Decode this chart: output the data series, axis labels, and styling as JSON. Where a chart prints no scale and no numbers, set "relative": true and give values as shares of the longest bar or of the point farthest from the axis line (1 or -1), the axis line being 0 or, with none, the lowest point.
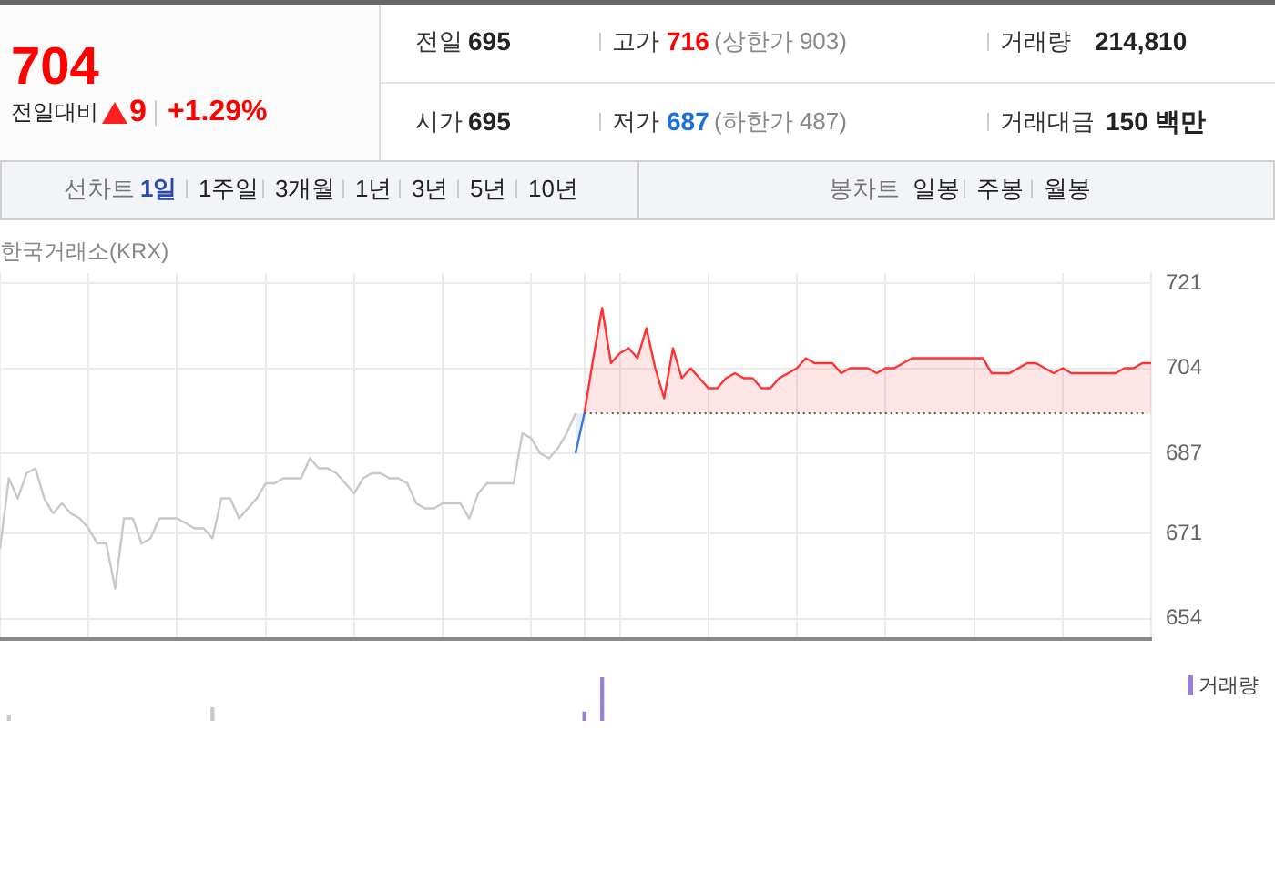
{
  "chart_data": [
    {
      "type": "other",
      "annotations": [
        "704",
        "전일대비",
        "9",
        "+1.29%",
        "전일",
        "695",
        "고가",
        "716",
        "(상한가 903)",
        "거래량",
        "214,810",
        "시가",
        "695",
        "저가",
        "687",
        "(하한가 487)",
        "거래대금",
        "150 백만",
        "선차트",
        "1일",
        "1주일",
        "3개월",
        "1년",
        "3년",
        "5년",
        "10년",
        "봉차트",
        "일봉",
        "주봉",
        "월봉"
      ]
    },
    {
      "type": "line",
      "annotations": [
        "한국거래소(KRX)"
      ],
      "categories": [
        null,
        null,
        null,
        null,
        null,
        null,
        null,
        null,
        null,
        null,
        null,
        null,
        null,
        null,
        null,
        null,
        null,
        null,
        null,
        null,
        null,
        null,
        null,
        null,
        null,
        null,
        null,
        null,
        null,
        null,
        null,
        null,
        null,
        null,
        null,
        null,
        null,
        null,
        null,
        null,
        null,
        null,
        null,
        null,
        null,
        null,
        null,
        null,
        null,
        null,
        null,
        null,
        null,
        null,
        null,
        null,
        null,
        null,
        null,
        null,
        null,
        null,
        null,
        null,
        null,
        null,
        null,
        null,
        null,
        null,
        null,
        null,
        null,
        null,
        null,
        null,
        null,
        null,
        null,
        null,
        null,
        null,
        null,
        null,
        null,
        null,
        null,
        null,
        null,
        null,
        null,
        null,
        null,
        null,
        null,
        null,
        null,
        null,
        null,
        null,
        null,
        null,
        null,
        null,
        null,
        null,
        null,
        null,
        null,
        null,
        null,
        null,
        null,
        null,
        null,
        null,
        null,
        null,
        null,
        null,
        null,
        null,
        null,
        null,
        null,
        null,
        null,
        null,
        null,
        null,
        null
      ],
      "series": [
        {
          "type": "line",
          "color": "#c8c8c8",
          "values": [
            668,
            682,
            678,
            683,
            684,
            678,
            675,
            677,
            675,
            674,
            672,
            669,
            669,
            660,
            674,
            674,
            669,
            670,
            674,
            674,
            674,
            673,
            672,
            672,
            670,
            678,
            678,
            674,
            676,
            678,
            681,
            681,
            682,
            682,
            682,
            686,
            684,
            684,
            683,
            681,
            679,
            682,
            683,
            683,
            682,
            682,
            681,
            677,
            676,
            676,
            677,
            677,
            677,
            674,
            679,
            681,
            681,
            681,
            681,
            691,
            690,
            687,
            686,
            688,
            691,
            695,
            null,
            null,
            null,
            null,
            null,
            null,
            null,
            null,
            null,
            null,
            null,
            null,
            null,
            null,
            null,
            null,
            null,
            null,
            null,
            null,
            null,
            null,
            null,
            null,
            null,
            null,
            null,
            null,
            null,
            null,
            null,
            null,
            null,
            null,
            null,
            null,
            null,
            null,
            null,
            null,
            null,
            null,
            null,
            null,
            null,
            null,
            null,
            null,
            null,
            null,
            null,
            null,
            null,
            null,
            null,
            null,
            null,
            null,
            null,
            null,
            null,
            null,
            null,
            null,
            null
          ]
        },
        {
          "type": "area",
          "color": "#3a78d8",
          "values": [
            null,
            null,
            null,
            null,
            null,
            null,
            null,
            null,
            null,
            null,
            null,
            null,
            null,
            null,
            null,
            null,
            null,
            null,
            null,
            null,
            null,
            null,
            null,
            null,
            null,
            null,
            null,
            null,
            null,
            null,
            null,
            null,
            null,
            null,
            null,
            null,
            null,
            null,
            null,
            null,
            null,
            null,
            null,
            null,
            null,
            null,
            null,
            null,
            null,
            null,
            null,
            null,
            null,
            null,
            null,
            null,
            null,
            null,
            null,
            null,
            null,
            null,
            null,
            null,
            null,
            687,
            695,
            null,
            null,
            null,
            null,
            null,
            null,
            null,
            null,
            null,
            null,
            null,
            null,
            null,
            null,
            null,
            null,
            null,
            null,
            null,
            null,
            null,
            null,
            null,
            null,
            null,
            null,
            null,
            null,
            null,
            null,
            null,
            null,
            null,
            null,
            null,
            null,
            null,
            null,
            null,
            null,
            null,
            null,
            null,
            null,
            null,
            null,
            null,
            null,
            null,
            null,
            null,
            null,
            null,
            null,
            null,
            null,
            null,
            null,
            null,
            null,
            null,
            null,
            null,
            null
          ]
        },
        {
          "type": "area",
          "color": "#ff3333",
          "values": [
            null,
            null,
            null,
            null,
            null,
            null,
            null,
            null,
            null,
            null,
            null,
            null,
            null,
            null,
            null,
            null,
            null,
            null,
            null,
            null,
            null,
            null,
            null,
            null,
            null,
            null,
            null,
            null,
            null,
            null,
            null,
            null,
            null,
            null,
            null,
            null,
            null,
            null,
            null,
            null,
            null,
            null,
            null,
            null,
            null,
            null,
            null,
            null,
            null,
            null,
            null,
            null,
            null,
            null,
            null,
            null,
            null,
            null,
            null,
            null,
            null,
            null,
            null,
            null,
            null,
            null,
            695,
            706,
            716,
            705,
            707,
            708,
            706,
            712,
            704,
            698,
            708,
            702,
            704,
            702,
            700,
            700,
            702,
            703,
            702,
            702,
            700,
            700,
            702,
            703,
            704,
            706,
            705,
            705,
            705,
            703,
            704,
            704,
            704,
            703,
            704,
            704,
            705,
            706,
            706,
            706,
            706,
            706,
            706,
            706,
            706,
            706,
            703,
            703,
            703,
            704,
            705,
            705,
            704,
            703,
            704,
            703,
            703,
            703,
            703,
            703,
            703,
            704,
            704,
            705,
            705
          ]
        }
      ],
      "ylim": [
        650,
        723
      ],
      "yticks": [
        654,
        671,
        687,
        704,
        721
      ],
      "grid": true,
      "ref_lines": [
        {
          "axis": "y",
          "value": 695,
          "color": "#555555",
          "line_style": "dotted"
        }
      ]
    },
    {
      "type": "bar",
      "relative": true,
      "legend": "top right",
      "categories": [
        null,
        null,
        null,
        null,
        null,
        null,
        null,
        null,
        null,
        null,
        null,
        null,
        null,
        null,
        null,
        null,
        null,
        null,
        null,
        null,
        null,
        null,
        null,
        null,
        null,
        null,
        null,
        null,
        null,
        null,
        null,
        null,
        null,
        null,
        null,
        null,
        null,
        null,
        null,
        null,
        null,
        null,
        null,
        null,
        null,
        null,
        null,
        null,
        null,
        null,
        null,
        null,
        null,
        null,
        null,
        null,
        null,
        null,
        null,
        null,
        null,
        null,
        null,
        null,
        null,
        null,
        null,
        null,
        null,
        null,
        null,
        null,
        null,
        null,
        null,
        null,
        null,
        null,
        null,
        null,
        null,
        null,
        null,
        null,
        null,
        null,
        null,
        null,
        null,
        null,
        null,
        null,
        null,
        null,
        null,
        null,
        null,
        null,
        null,
        null,
        null,
        null,
        null,
        null,
        null,
        null,
        null,
        null,
        null,
        null,
        null,
        null,
        null,
        null,
        null,
        null,
        null,
        null,
        null,
        null,
        null,
        null,
        null,
        null,
        null,
        null,
        null,
        null,
        null,
        null,
        null
      ],
      "series": [
        {
          "color": "#c8c8c8",
          "values": [
            null,
            0.13,
            null,
            null,
            null,
            null,
            null,
            null,
            null,
            null,
            null,
            null,
            null,
            null,
            null,
            null,
            null,
            null,
            null,
            null,
            null,
            null,
            null,
            null,
            0.3,
            null,
            null,
            null,
            null,
            null,
            null,
            null,
            null,
            null,
            null,
            null,
            null,
            null,
            null,
            null,
            null,
            null,
            null,
            null,
            null,
            null,
            null,
            null,
            null,
            null,
            null,
            null,
            null,
            null,
            null,
            null,
            null,
            null,
            null,
            null,
            null,
            null,
            null,
            null,
            null,
            null,
            null,
            null,
            null,
            null,
            null,
            null,
            null,
            null,
            null,
            null,
            null,
            null,
            null,
            null,
            null,
            null,
            null,
            null,
            null,
            null,
            null,
            null,
            null,
            null,
            null,
            null,
            null,
            null,
            null,
            null,
            null,
            null,
            null,
            null,
            null,
            null,
            null,
            null,
            null,
            null,
            null,
            null,
            null,
            null,
            null,
            null,
            null,
            null,
            null,
            null,
            null,
            null,
            null,
            null,
            null,
            null,
            null,
            null,
            null,
            null,
            null,
            null,
            null,
            null,
            null
          ]
        },
        {
          "name": "거래량",
          "color": "#9b7fd4",
          "values": [
            null,
            null,
            null,
            null,
            null,
            null,
            null,
            null,
            null,
            null,
            null,
            null,
            null,
            null,
            null,
            null,
            null,
            null,
            null,
            null,
            null,
            null,
            null,
            null,
            null,
            null,
            null,
            null,
            null,
            null,
            null,
            null,
            null,
            null,
            null,
            null,
            null,
            null,
            null,
            null,
            null,
            null,
            null,
            null,
            null,
            null,
            null,
            null,
            null,
            null,
            null,
            null,
            null,
            null,
            null,
            null,
            null,
            null,
            null,
            null,
            null,
            null,
            null,
            null,
            null,
            null,
            0.2,
            null,
            1,
            null,
            null,
            null,
            null,
            null,
            null,
            null,
            null,
            null,
            null,
            null,
            null,
            null,
            null,
            null,
            null,
            null,
            null,
            null,
            null,
            null,
            null,
            null,
            null,
            null,
            null,
            null,
            null,
            null,
            null,
            null,
            null,
            null,
            null,
            null,
            null,
            null,
            null,
            null,
            null,
            null,
            null,
            null,
            null,
            null,
            null,
            null,
            null,
            null,
            null,
            null,
            null,
            null,
            null,
            null,
            null,
            null,
            null,
            null,
            null,
            null,
            null
          ]
        }
      ]
    }
  ]
}
